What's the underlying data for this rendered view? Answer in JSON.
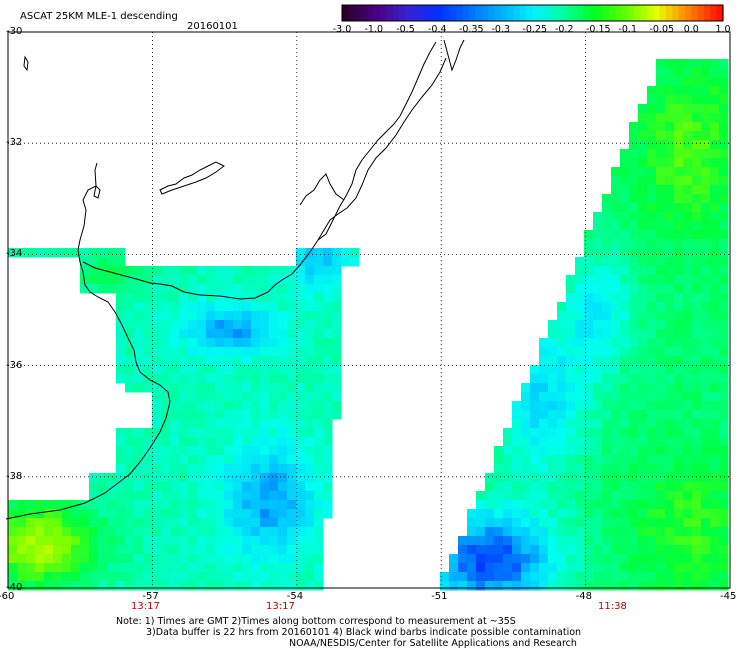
{
  "header": {
    "title": "ASCAT 25KM MLE-1 descending",
    "date": "20160101"
  },
  "colorbar": {
    "labels": [
      "-3.0",
      "-1.0",
      "-0.5",
      "-0.4",
      "-0.35",
      "-0.3",
      "-0.25",
      "-0.2",
      "-0.15",
      "-0.1",
      "-0.05",
      "0.0",
      "1.0"
    ],
    "colors": [
      "#2a002a",
      "#4b0082",
      "#3a20d0",
      "#0030ff",
      "#0070ff",
      "#00b0ff",
      "#00f0ff",
      "#00ffa0",
      "#00ff20",
      "#60ff00",
      "#e8ff00",
      "#ff8000",
      "#ff1000"
    ]
  },
  "axes": {
    "lat_labels": [
      "-30",
      "-32",
      "-34",
      "-36",
      "-38",
      "-40"
    ],
    "lon_labels": [
      "-60",
      "-57",
      "-54",
      "-51",
      "-48",
      "-45"
    ]
  },
  "times": [
    "13:17",
    "13:17",
    "11:38"
  ],
  "notes": [
    "Note: 1) Times are GMT 2)Times along bottom correspond to measurement at ~35S",
    "3)Data buffer is 22 hrs from 20160101 4) Black wind barbs indicate possible contamination",
    "NOAA/NESDIS/Center for Satellite Applications and Research"
  ]
}
